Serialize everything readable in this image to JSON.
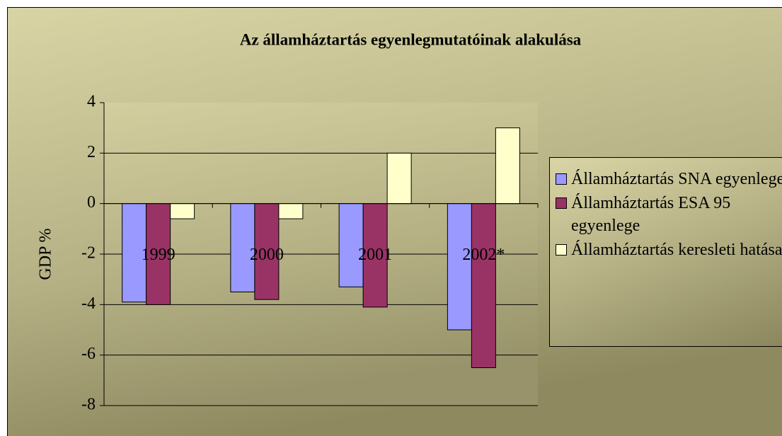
{
  "chart_data": {
    "type": "bar",
    "title": "Az államháztartás egyenlegmutatóinak alakulása",
    "y_label": "GDP %",
    "categories": [
      "1999",
      "2000",
      "2001",
      "2002*"
    ],
    "series": [
      {
        "name": "Államháztartás SNA egyenlege",
        "color": "#9999ff",
        "values": [
          -3.9,
          -3.5,
          -3.3,
          -5.0
        ]
      },
      {
        "name": "Államháztartás ESA 95 egyenlege",
        "color": "#993366",
        "values": [
          -4.0,
          -3.8,
          -4.1,
          -6.5
        ]
      },
      {
        "name": "Államháztartás keresleti hatása",
        "color": "#ffffcc",
        "values": [
          -0.6,
          -0.6,
          2.0,
          3.0
        ]
      }
    ],
    "ylim": [
      -8,
      4
    ],
    "yticks": [
      -8,
      -6,
      -4,
      -2,
      0,
      2,
      4
    ],
    "grid": true,
    "legend": "right"
  }
}
